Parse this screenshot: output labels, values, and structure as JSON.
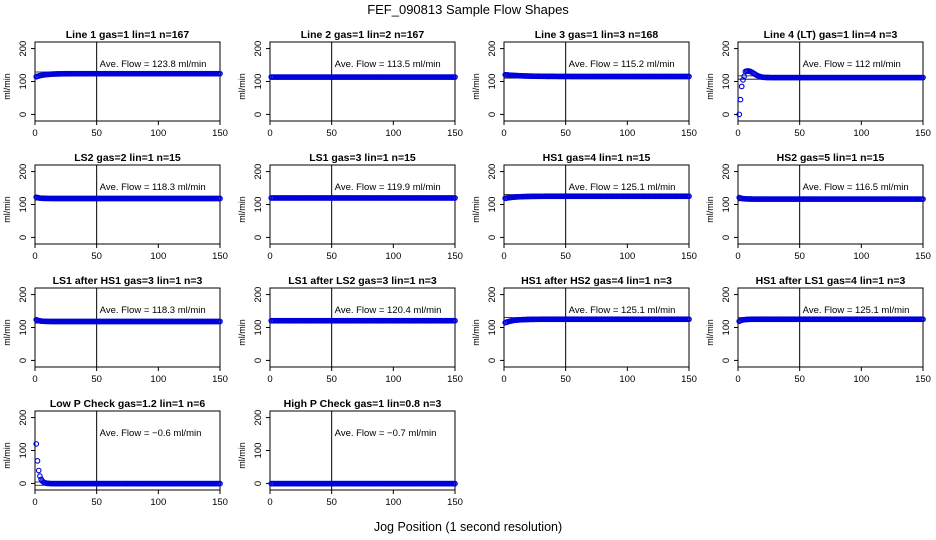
{
  "title": "FEF_090813  Sample Flow Shapes",
  "xlabel": "Jog Position (1 second resolution)",
  "colors": {
    "points": "#0000dd",
    "axes": "#000000",
    "background": "#ffffff"
  },
  "chart_data": [
    {
      "type": "scatter",
      "title": "Line 1 gas=1 lin=1 n=167",
      "ylabel": "ml/min",
      "annotation": "Ave. Flow =  123.8  ml/min",
      "avg": 123.8,
      "vline": 50,
      "xlim": [
        0,
        150
      ],
      "ylim": [
        -20,
        220
      ],
      "xticks": [
        "0",
        "50",
        "100",
        "150"
      ],
      "yticks": [
        "0",
        "100",
        "200"
      ],
      "shape": "rise",
      "start_value": 113,
      "settle_value": 123.8,
      "settle_x": 20
    },
    {
      "type": "scatter",
      "title": "Line 2 gas=1 lin=2 n=167",
      "ylabel": "ml/min",
      "annotation": "Ave. Flow =  113.5  ml/min",
      "avg": 113.5,
      "vline": 50,
      "xlim": [
        0,
        150
      ],
      "ylim": [
        -20,
        220
      ],
      "xticks": [
        "0",
        "50",
        "100",
        "150"
      ],
      "yticks": [
        "0",
        "100",
        "200"
      ],
      "shape": "flat",
      "start_value": 114,
      "settle_value": 113.5,
      "settle_x": 3
    },
    {
      "type": "scatter",
      "title": "Line 3 gas=1 lin=3 n=168",
      "ylabel": "ml/min",
      "annotation": "Ave. Flow =  115.2  ml/min",
      "avg": 115.2,
      "vline": 50,
      "xlim": [
        0,
        150
      ],
      "ylim": [
        -20,
        220
      ],
      "xticks": [
        "0",
        "50",
        "100",
        "150"
      ],
      "yticks": [
        "0",
        "100",
        "200"
      ],
      "shape": "fall",
      "start_value": 121,
      "settle_value": 115.2,
      "settle_x": 40
    },
    {
      "type": "scatter",
      "title": "Line 4 (LT) gas=1 lin=4 n=3",
      "ylabel": "ml/min",
      "annotation": "Ave. Flow =  112  ml/min",
      "avg": 112,
      "vline": 50,
      "xlim": [
        0,
        150
      ],
      "ylim": [
        -20,
        220
      ],
      "xticks": [
        "0",
        "50",
        "100",
        "150"
      ],
      "yticks": [
        "0",
        "100",
        "200"
      ],
      "shape": "overshoot",
      "start_value": 0,
      "settle_value": 112,
      "settle_x": 35
    },
    {
      "type": "scatter",
      "title": "LS2 gas=2 lin=1 n=15",
      "ylabel": "ml/min",
      "annotation": "Ave. Flow =  118.3  ml/min",
      "avg": 118.3,
      "vline": 50,
      "xlim": [
        0,
        150
      ],
      "ylim": [
        -20,
        220
      ],
      "xticks": [
        "0",
        "50",
        "100",
        "150"
      ],
      "yticks": [
        "0",
        "100",
        "200"
      ],
      "shape": "fall",
      "start_value": 124,
      "settle_value": 118.3,
      "settle_x": 8
    },
    {
      "type": "scatter",
      "title": "LS1 gas=3 lin=1 n=15",
      "ylabel": "ml/min",
      "annotation": "Ave. Flow =  119.9  ml/min",
      "avg": 119.9,
      "vline": 50,
      "xlim": [
        0,
        150
      ],
      "ylim": [
        -20,
        220
      ],
      "xticks": [
        "0",
        "50",
        "100",
        "150"
      ],
      "yticks": [
        "0",
        "100",
        "200"
      ],
      "shape": "flat",
      "start_value": 121,
      "settle_value": 119.9,
      "settle_x": 3
    },
    {
      "type": "scatter",
      "title": "HS1 gas=4 lin=1 n=15",
      "ylabel": "ml/min",
      "annotation": "Ave. Flow =  125.1  ml/min",
      "avg": 125.1,
      "vline": 50,
      "xlim": [
        0,
        150
      ],
      "ylim": [
        -20,
        220
      ],
      "xticks": [
        "0",
        "50",
        "100",
        "150"
      ],
      "yticks": [
        "0",
        "100",
        "200"
      ],
      "shape": "rise",
      "start_value": 118,
      "settle_value": 125.1,
      "settle_x": 25
    },
    {
      "type": "scatter",
      "title": "HS2 gas=5 lin=1 n=15",
      "ylabel": "ml/min",
      "annotation": "Ave. Flow =  116.5  ml/min",
      "avg": 116.5,
      "vline": 50,
      "xlim": [
        0,
        150
      ],
      "ylim": [
        -20,
        220
      ],
      "xticks": [
        "0",
        "50",
        "100",
        "150"
      ],
      "yticks": [
        "0",
        "100",
        "200"
      ],
      "shape": "fall",
      "start_value": 123,
      "settle_value": 116.5,
      "settle_x": 8
    },
    {
      "type": "scatter",
      "title": "LS1 after HS1 gas=3 lin=1 n=3",
      "ylabel": "ml/min",
      "annotation": "Ave. Flow =  118.3  ml/min",
      "avg": 118.3,
      "vline": 50,
      "xlim": [
        0,
        150
      ],
      "ylim": [
        -20,
        220
      ],
      "xticks": [
        "0",
        "50",
        "100",
        "150"
      ],
      "yticks": [
        "0",
        "100",
        "200"
      ],
      "shape": "fall",
      "start_value": 126,
      "settle_value": 118.3,
      "settle_x": 8
    },
    {
      "type": "scatter",
      "title": "LS1 after LS2 gas=3 lin=1 n=3",
      "ylabel": "ml/min",
      "annotation": "Ave. Flow =  120.4  ml/min",
      "avg": 120.4,
      "vline": 50,
      "xlim": [
        0,
        150
      ],
      "ylim": [
        -20,
        220
      ],
      "xticks": [
        "0",
        "50",
        "100",
        "150"
      ],
      "yticks": [
        "0",
        "100",
        "200"
      ],
      "shape": "flat",
      "start_value": 121,
      "settle_value": 120.4,
      "settle_x": 3
    },
    {
      "type": "scatter",
      "title": "HS1 after HS2 gas=4 lin=1 n=3",
      "ylabel": "ml/min",
      "annotation": "Ave. Flow =  125.1  ml/min",
      "avg": 125.1,
      "vline": 50,
      "xlim": [
        0,
        150
      ],
      "ylim": [
        -20,
        220
      ],
      "xticks": [
        "0",
        "50",
        "100",
        "150"
      ],
      "yticks": [
        "0",
        "100",
        "200"
      ],
      "shape": "rise",
      "start_value": 113,
      "settle_value": 125.1,
      "settle_x": 20
    },
    {
      "type": "scatter",
      "title": "HS1 after LS1 gas=4 lin=1 n=3",
      "ylabel": "ml/min",
      "annotation": "Ave. Flow =  125.1  ml/min",
      "avg": 125.1,
      "vline": 50,
      "xlim": [
        0,
        150
      ],
      "ylim": [
        -20,
        220
      ],
      "xticks": [
        "0",
        "50",
        "100",
        "150"
      ],
      "yticks": [
        "0",
        "100",
        "200"
      ],
      "shape": "rise",
      "start_value": 116,
      "settle_value": 125.1,
      "settle_x": 8
    },
    {
      "type": "scatter",
      "title": "Low P Check gas=1.2 lin=1 n=6",
      "ylabel": "ml/min",
      "annotation": "Ave. Flow =  −0.6  ml/min",
      "avg": -0.6,
      "vline": 50,
      "xlim": [
        0,
        150
      ],
      "ylim": [
        -20,
        220
      ],
      "xticks": [
        "0",
        "50",
        "100",
        "150"
      ],
      "yticks": [
        "0",
        "100",
        "200"
      ],
      "shape": "decay",
      "start_value": 120,
      "settle_value": -0.6,
      "settle_x": 10
    },
    {
      "type": "scatter",
      "title": "High P Check gas=1 lin=0.8 n=3",
      "ylabel": "ml/min",
      "annotation": "Ave. Flow =  −0.7  ml/min",
      "avg": -0.7,
      "vline": 50,
      "xlim": [
        0,
        150
      ],
      "ylim": [
        -20,
        220
      ],
      "xticks": [
        "0",
        "50",
        "100",
        "150"
      ],
      "yticks": [
        "0",
        "100",
        "200"
      ],
      "shape": "flat",
      "start_value": -0.7,
      "settle_value": -0.7,
      "settle_x": 1
    }
  ]
}
